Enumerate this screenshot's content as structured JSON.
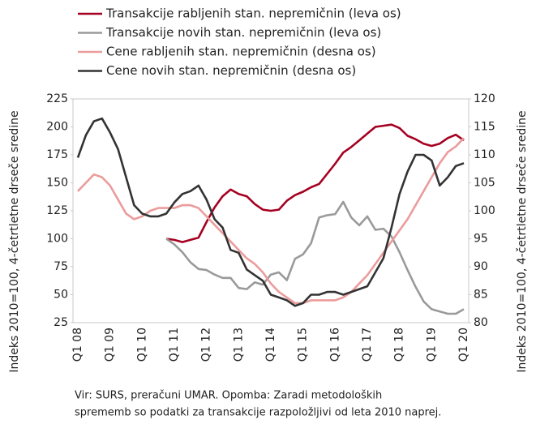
{
  "chart_data": {
    "type": "line",
    "y_label": "Indeks 2010=100, 4-četrtletne drseče sredine",
    "y2_label": "Indeks 2010=100, 4-četrtletne drseče sredine",
    "note": [
      "Vir: SURS, preračuni UMAR. Opomba: Zaradi metodoloških",
      "sprememb so podatki za transakcije razpoložljivi od leta 2010 naprej."
    ],
    "categories": [
      "Q1 08",
      null,
      null,
      null,
      "Q1 09",
      null,
      null,
      null,
      "Q1 10",
      null,
      null,
      null,
      "Q1 11",
      null,
      null,
      null,
      "Q1 12",
      null,
      null,
      null,
      "Q1 13",
      null,
      null,
      null,
      "Q1 14",
      null,
      null,
      null,
      "Q1 15",
      null,
      null,
      null,
      "Q1 16",
      null,
      null,
      null,
      "Q1 17",
      null,
      null,
      null,
      "Q1 18",
      null,
      null,
      null,
      "Q1 19",
      null,
      null,
      null,
      "Q1 20"
    ],
    "ylim": [
      25,
      225
    ],
    "yticks": [
      25,
      50,
      75,
      100,
      125,
      150,
      175,
      200,
      225
    ],
    "y2lim": [
      80,
      120
    ],
    "y2ticks": [
      80,
      85,
      90,
      95,
      100,
      105,
      110,
      115,
      120
    ],
    "series": [
      {
        "name": "Transakcije rabljenih stan. nepremičnin (leva os)",
        "color": "#a50021",
        "values": [
          null,
          null,
          null,
          null,
          null,
          null,
          null,
          null,
          null,
          null,
          null,
          100,
          99,
          97,
          99,
          101,
          115,
          128,
          138,
          144,
          140,
          138,
          131,
          126,
          125,
          126,
          134,
          139,
          142,
          146,
          149,
          158,
          167,
          177,
          182,
          188,
          194,
          200,
          201,
          202,
          199,
          192,
          189,
          185,
          183,
          185,
          190,
          193,
          188
        ]
      },
      {
        "name": "Transakcije novih stan. nepremičnin (leva os)",
        "color": "#9a9a9a",
        "values": [
          null,
          null,
          null,
          null,
          null,
          null,
          null,
          null,
          null,
          null,
          null,
          100,
          95,
          88,
          79,
          73,
          72,
          68,
          65,
          65,
          56,
          55,
          61,
          59,
          68,
          70,
          63,
          82,
          86,
          96,
          119,
          121,
          122,
          133,
          119,
          112,
          120,
          108,
          109,
          102,
          88,
          72,
          57,
          44,
          37,
          35,
          33,
          33,
          37
        ]
      },
      {
        "name": "Cene rabljenih stan. nepremičnin (desna os)",
        "color": "#eb9c9c",
        "axis": "y2",
        "values": [
          103.5,
          105,
          106.5,
          106,
          104.5,
          102,
          99.5,
          98.5,
          99,
          100,
          100.5,
          100.5,
          100.5,
          101,
          101,
          100.5,
          99,
          97.5,
          96,
          94.5,
          93,
          91.5,
          90.5,
          89,
          87,
          85.5,
          84.5,
          83.5,
          83.5,
          84,
          84,
          84,
          84,
          84.5,
          85.5,
          87,
          88.5,
          90.5,
          92.5,
          94.5,
          96.5,
          98.5,
          101,
          103.5,
          106,
          108.5,
          110.5,
          111.5,
          113
        ]
      },
      {
        "name": "Cene novih stan. nepremičnin (desna os)",
        "color": "#333333",
        "axis": "y2",
        "values": [
          109.5,
          113.5,
          116,
          116.5,
          114,
          111,
          106,
          101,
          99.5,
          99,
          99,
          99.5,
          101.5,
          103,
          103.5,
          104.5,
          102,
          98.5,
          97,
          93,
          92.5,
          89.5,
          88.5,
          87.5,
          85,
          84.5,
          84,
          83,
          83.5,
          85,
          85,
          85.5,
          85.5,
          85,
          85.5,
          86,
          86.5,
          89,
          91.5,
          97,
          103,
          107,
          110,
          110,
          109,
          104.5,
          106,
          108,
          108.5
        ]
      }
    ]
  }
}
